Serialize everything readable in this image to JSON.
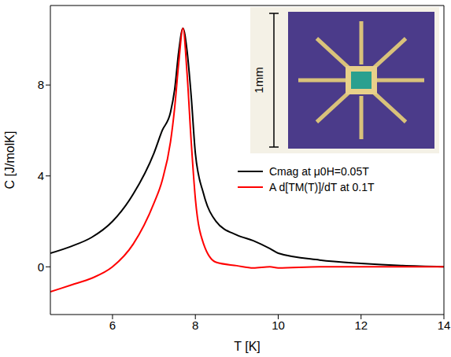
{
  "chart_data": {
    "type": "line",
    "x_label": "T [K]",
    "y_label": "C [J/molK]",
    "x": [
      4.5,
      5,
      5.5,
      6,
      6.5,
      7,
      7.2,
      7.4,
      7.5,
      7.6,
      7.7,
      7.8,
      7.9,
      8,
      8.2,
      8.5,
      9,
      9.4,
      9.8,
      10,
      11,
      12,
      13,
      14
    ],
    "series": [
      {
        "name": "Cmag at μ0H=0.05T",
        "color": "#000000",
        "values": [
          0.6,
          0.9,
          1.3,
          2.0,
          3.2,
          5.0,
          6.0,
          6.8,
          7.8,
          9.5,
          10.5,
          9.5,
          7.5,
          5.0,
          3.2,
          2.0,
          1.4,
          1.15,
          0.8,
          0.6,
          0.3,
          0.15,
          0.05,
          0.0
        ]
      },
      {
        "name": "A d[TM(T)]/dT at 0.1T",
        "color": "#ff0000",
        "values": [
          -1.1,
          -0.8,
          -0.5,
          0.0,
          1.0,
          2.8,
          3.8,
          5.5,
          7.0,
          9.0,
          10.5,
          8.5,
          5.5,
          3.0,
          1.0,
          0.2,
          0.05,
          -0.05,
          0.0,
          -0.05,
          0.0,
          0.0,
          0.0,
          0.0
        ]
      }
    ],
    "xlim": [
      4.5,
      14
    ],
    "xticks": [
      6,
      8,
      10,
      12,
      14
    ],
    "ylim": [
      -2.1,
      11.5
    ],
    "yticks": [
      0,
      4,
      8
    ],
    "grid": false,
    "legend": "right",
    "annotations": [
      {
        "text": "1mm"
      }
    ]
  }
}
